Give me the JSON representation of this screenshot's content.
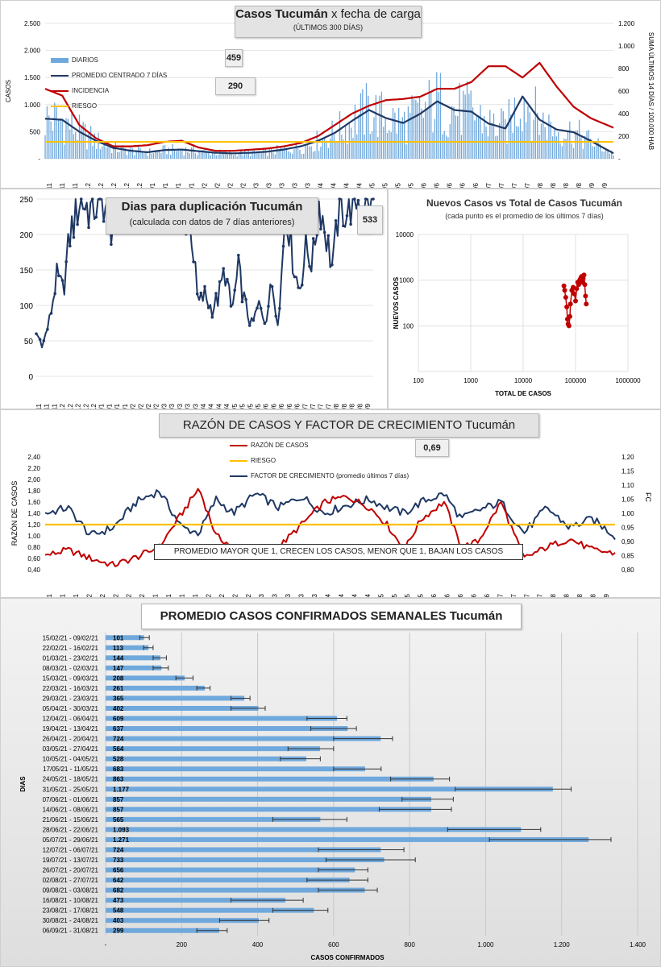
{
  "chart_data": [
    {
      "type": "bar+line",
      "title": "Casos Tucumán",
      "title_suffix": "x fecha de carga",
      "subtitle": "(ÚLTIMOS 300 DÍAS)",
      "ylabel": "CASOS",
      "y2label": "SUMA ÚLTIMOS 14 DÍAS / 100.000 HAB",
      "ylim": [
        0,
        2500
      ],
      "y2lim": [
        0,
        1200
      ],
      "yticks": [
        "-",
        "500",
        "1.000",
        "1.500",
        "2.000",
        "2.500"
      ],
      "y2ticks": [
        "-",
        "200",
        "400",
        "600",
        "800",
        "1.000",
        "1.200"
      ],
      "xticks": [
        "11/11",
        "18/11",
        "25/11",
        "2/12",
        "9/12",
        "16/12",
        "23/12",
        "30/12",
        "6/1",
        "13/1",
        "20/1",
        "27/1",
        "3/2",
        "10/2",
        "17/2",
        "24/2",
        "3/3",
        "10/3",
        "17/3",
        "24/3",
        "31/3",
        "7/4",
        "14/4",
        "21/4",
        "28/4",
        "5/5",
        "12/5",
        "19/5",
        "26/5",
        "2/6",
        "9/6",
        "16/6",
        "23/6",
        "30/6",
        "7/7",
        "14/7",
        "21/7",
        "28/7",
        "4/8",
        "11/8",
        "18/8",
        "25/8",
        "1/9",
        "8/9"
      ],
      "legend": [
        "DIARIOS",
        "PROMEDIO CENTRADO 7 DÍAS",
        "INCIDENCIA",
        "RIESGO"
      ],
      "callouts": [
        "459",
        "290"
      ],
      "series": [
        {
          "name": "PROMEDIO CENTRADO 7 DÍAS",
          "axis": "left",
          "x": [
            0,
            0.03,
            0.06,
            0.09,
            0.12,
            0.15,
            0.18,
            0.21,
            0.24,
            0.27,
            0.3,
            0.33,
            0.36,
            0.39,
            0.42,
            0.45,
            0.48,
            0.51,
            0.54,
            0.57,
            0.6,
            0.63,
            0.66,
            0.69,
            0.72,
            0.75,
            0.78,
            0.81,
            0.84,
            0.87,
            0.9,
            0.93,
            0.96,
            1
          ],
          "values": [
            740,
            720,
            500,
            330,
            200,
            150,
            120,
            160,
            170,
            140,
            110,
            100,
            110,
            130,
            170,
            230,
            330,
            480,
            700,
            900,
            750,
            660,
            830,
            1060,
            900,
            870,
            650,
            560,
            1150,
            720,
            540,
            490,
            330,
            100
          ]
        },
        {
          "name": "INCIDENCIA",
          "axis": "right",
          "x": [
            0,
            0.03,
            0.06,
            0.09,
            0.12,
            0.15,
            0.18,
            0.21,
            0.24,
            0.27,
            0.3,
            0.33,
            0.36,
            0.39,
            0.42,
            0.45,
            0.48,
            0.51,
            0.54,
            0.57,
            0.6,
            0.63,
            0.66,
            0.69,
            0.72,
            0.75,
            0.78,
            0.81,
            0.84,
            0.87,
            0.9,
            0.93,
            0.96,
            1
          ],
          "values": [
            620,
            560,
            300,
            180,
            110,
            110,
            120,
            150,
            160,
            100,
            70,
            70,
            80,
            90,
            110,
            140,
            200,
            300,
            400,
            470,
            520,
            530,
            550,
            620,
            620,
            680,
            820,
            820,
            720,
            850,
            640,
            460,
            360,
            275
          ]
        },
        {
          "name": "RIESGO",
          "axis": "right",
          "values": [
            150
          ]
        }
      ]
    },
    {
      "type": "line",
      "title": "Dias para duplicación Tucumán",
      "subtitle": "(calculada con datos de 7 días anteriores)",
      "ylim": [
        0,
        250
      ],
      "yticks": [
        "0",
        "50",
        "100",
        "150",
        "200",
        "250"
      ],
      "xticks": [
        "11/11",
        "18/11",
        "25/11",
        "2/12",
        "9/12",
        "16/12",
        "23/12",
        "30/12",
        "6/1",
        "13/1",
        "20/1",
        "27/1",
        "3/2",
        "10/2",
        "17/2",
        "24/2",
        "3/3",
        "10/3",
        "17/3",
        "24/3",
        "31/3",
        "7/4",
        "14/4",
        "21/4",
        "28/4",
        "5/5",
        "12/5",
        "19/5",
        "26/5",
        "2/6",
        "9/6",
        "16/6",
        "23/6",
        "30/6",
        "7/7",
        "14/7",
        "21/7",
        "28/7",
        "4/8",
        "11/8",
        "18/8",
        "25/8",
        "1/9"
      ],
      "callout": "533",
      "x": [
        0,
        0.02,
        0.04,
        0.06,
        0.08,
        0.1,
        0.13,
        0.16,
        0.2,
        0.22,
        0.26,
        0.3,
        0.34,
        0.38,
        0.42,
        0.46,
        0.48,
        0.5,
        0.52,
        0.54,
        0.56,
        0.58,
        0.6,
        0.62,
        0.64,
        0.66,
        0.68,
        0.7,
        0.72,
        0.74,
        0.76,
        0.78,
        0.8,
        0.82,
        0.84,
        0.86,
        0.88,
        0.9,
        0.92,
        0.94,
        0.96
      ],
      "values": [
        60,
        45,
        80,
        140,
        120,
        200,
        250,
        235,
        250,
        210,
        250,
        250,
        250,
        250,
        250,
        210,
        100,
        115,
        95,
        110,
        150,
        90,
        150,
        100,
        70,
        100,
        80,
        130,
        75,
        250,
        170,
        120,
        180,
        160,
        250,
        200,
        150,
        250,
        230,
        250,
        250
      ]
    },
    {
      "type": "scatter",
      "title": "Nuevos Casos vs Total de Casos Tucumán",
      "subtitle": "(cada punto es el promedio de los últimos 7 días)",
      "xlabel": "TOTAL DE CASOS",
      "ylabel": "NUEVOS CASOS",
      "xscale": "log",
      "yscale": "log",
      "xlim": [
        100,
        1000000
      ],
      "ylim": [
        10,
        10000
      ],
      "xticks": [
        "100",
        "1000",
        "10000",
        "100000",
        "1000000"
      ],
      "yticks": [
        "10",
        "100",
        "1000",
        "10000"
      ],
      "x": [
        60000,
        62000,
        65000,
        68000,
        70000,
        72000,
        75000,
        78000,
        80000,
        85000,
        90000,
        95000,
        100000,
        105000,
        110000,
        115000,
        120000,
        125000,
        130000,
        135000,
        140000,
        145000,
        150000,
        155000,
        160000
      ],
      "values": [
        750,
        600,
        420,
        260,
        140,
        110,
        100,
        160,
        300,
        600,
        700,
        500,
        350,
        650,
        900,
        800,
        1000,
        1100,
        1200,
        900,
        1100,
        1300,
        800,
        450,
        300
      ]
    },
    {
      "type": "line",
      "title": "RAZÓN DE CASOS Y FACTOR DE CRECIMIENTO Tucumán",
      "ylabel": "RAZÓN DE CASOS",
      "y2label": "FC",
      "ylim": [
        0.4,
        2.4
      ],
      "y2lim": [
        0.8,
        1.2
      ],
      "yticks": [
        "0,40",
        "0,60",
        "0,80",
        "1,00",
        "1,20",
        "1,40",
        "1,60",
        "1,80",
        "2,00",
        "2,20",
        "2,40"
      ],
      "y2ticks": [
        "0,80",
        "0,85",
        "0,90",
        "0,95",
        "1,00",
        "1,05",
        "1,10",
        "1,15",
        "1,20"
      ],
      "xticks": [
        "11/11",
        "18/11",
        "25/11",
        "2/12",
        "9/12",
        "16/12",
        "23/12",
        "30/12",
        "6/1",
        "13/1",
        "20/1",
        "27/1",
        "3/2",
        "10/2",
        "17/2",
        "24/2",
        "3/3",
        "10/3",
        "17/3",
        "24/3",
        "31/3",
        "7/4",
        "14/4",
        "21/4",
        "28/4",
        "5/5",
        "12/5",
        "19/5",
        "26/5",
        "2/6",
        "9/6",
        "16/6",
        "23/6",
        "30/6",
        "7/7",
        "14/7",
        "21/7",
        "28/7",
        "4/8",
        "11/8",
        "18/8",
        "25/8",
        "1/9"
      ],
      "legend": [
        "RAZÓN DE CASOS",
        "RIESGO",
        "FACTOR DE CRECIMIENTO (promedio últimos 7 días)"
      ],
      "callout": "0,69",
      "note": "PROMEDIO MAYOR QUE 1, CRECEN LOS CASOS, MENOR QUE 1, BAJAN LOS CASOS",
      "series": [
        {
          "name": "RAZÓN DE CASOS",
          "axis": "left",
          "x": [
            0,
            0.04,
            0.08,
            0.12,
            0.16,
            0.2,
            0.24,
            0.27,
            0.3,
            0.33,
            0.37,
            0.41,
            0.45,
            0.49,
            0.53,
            0.57,
            0.6,
            0.63,
            0.66,
            0.7,
            0.73,
            0.76,
            0.8,
            0.84,
            0.88,
            0.92,
            0.96,
            1
          ],
          "values": [
            0.65,
            0.75,
            0.6,
            0.48,
            0.62,
            0.8,
            1.4,
            1.85,
            1.0,
            0.8,
            0.75,
            0.8,
            1.2,
            1.6,
            1.7,
            1.5,
            1.2,
            0.75,
            1.3,
            1.6,
            0.8,
            0.9,
            1.6,
            0.6,
            0.8,
            0.95,
            0.75,
            0.69
          ]
        },
        {
          "name": "RIESGO",
          "axis": "left",
          "values": [
            1.2
          ]
        },
        {
          "name": "FACTOR DE CRECIMIENTO (promedio últimos 7 días)",
          "axis": "right",
          "x": [
            0,
            0.04,
            0.08,
            0.12,
            0.16,
            0.2,
            0.24,
            0.27,
            0.3,
            0.33,
            0.37,
            0.41,
            0.45,
            0.49,
            0.53,
            0.57,
            0.6,
            0.63,
            0.66,
            0.7,
            0.73,
            0.76,
            0.8,
            0.84,
            0.88,
            0.92,
            0.96,
            1
          ],
          "values": [
            1.0,
            1.02,
            0.92,
            0.95,
            1.04,
            1.08,
            0.95,
            0.93,
            1.05,
            1.0,
            1.07,
            1.02,
            1.06,
            1.0,
            1.03,
            1.05,
            1.02,
            1.0,
            1.04,
            1.07,
            0.98,
            1.01,
            1.04,
            0.93,
            1.02,
            0.95,
            0.98,
            0.92
          ]
        }
      ]
    },
    {
      "type": "bar",
      "orientation": "horizontal",
      "title": "PROMEDIO CASOS CONFIRMADOS SEMANALES Tucumán",
      "xlabel": "CASOS CONFIRMADOS",
      "ylabel": "DIAS",
      "xlim": [
        0,
        1400
      ],
      "xticks": [
        "-",
        "200",
        "400",
        "600",
        "800",
        "1.000",
        "1.200",
        "1.400"
      ],
      "categories": [
        "15/02/21 - 09/02/21",
        "22/02/21 - 16/02/21",
        "01/03/21 - 23/02/21",
        "08/03/21 - 02/03/21",
        "15/03/21 - 09/03/21",
        "22/03/21 - 16/03/21",
        "29/03/21 - 23/03/21",
        "05/04/21 - 30/03/21",
        "12/04/21 - 06/04/21",
        "19/04/21 - 13/04/21",
        "26/04/21 - 20/04/21",
        "03/05/21 - 27/04/21",
        "10/05/21 - 04/05/21",
        "17/05/21 - 11/05/21",
        "24/05/21 - 18/05/21",
        "31/05/21 - 25/05/21",
        "07/06/21 - 01/06/21",
        "14/06/21 - 08/06/21",
        "21/06/21 - 15/06/21",
        "28/06/21 - 22/06/21",
        "05/07/21 - 29/06/21",
        "12/07/21 - 06/07/21",
        "19/07/21 - 13/07/21",
        "26/07/21 - 20/07/21",
        "02/08/21 - 27/07/21",
        "09/08/21 - 03/08/21",
        "16/08/21 - 10/08/21",
        "23/08/21 - 17/08/21",
        "30/08/21 - 24/08/21",
        "06/09/21 - 31/08/21"
      ],
      "values": [
        101,
        113,
        144,
        147,
        208,
        261,
        365,
        402,
        609,
        637,
        724,
        564,
        528,
        683,
        863,
        1177,
        857,
        857,
        565,
        1093,
        1271,
        724,
        733,
        656,
        642,
        682,
        473,
        548,
        403,
        299
      ],
      "value_labels": [
        "101",
        "113",
        "144",
        "147",
        "208",
        "261",
        "365",
        "402",
        "609",
        "637",
        "724",
        "564",
        "528",
        "683",
        "863",
        "1.177",
        "857",
        "857",
        "565",
        "1.093",
        "1.271",
        "724",
        "733",
        "656",
        "642",
        "682",
        "473",
        "548",
        "403",
        "299"
      ],
      "error_low": [
        90,
        100,
        125,
        125,
        185,
        240,
        330,
        330,
        530,
        540,
        600,
        480,
        460,
        600,
        750,
        920,
        780,
        720,
        440,
        900,
        1010,
        560,
        580,
        560,
        530,
        560,
        330,
        440,
        300,
        240
      ],
      "error_high": [
        115,
        125,
        160,
        165,
        230,
        275,
        380,
        420,
        635,
        660,
        755,
        600,
        565,
        725,
        905,
        1225,
        915,
        910,
        635,
        1145,
        1330,
        785,
        815,
        690,
        690,
        715,
        520,
        585,
        430,
        320
      ]
    }
  ]
}
